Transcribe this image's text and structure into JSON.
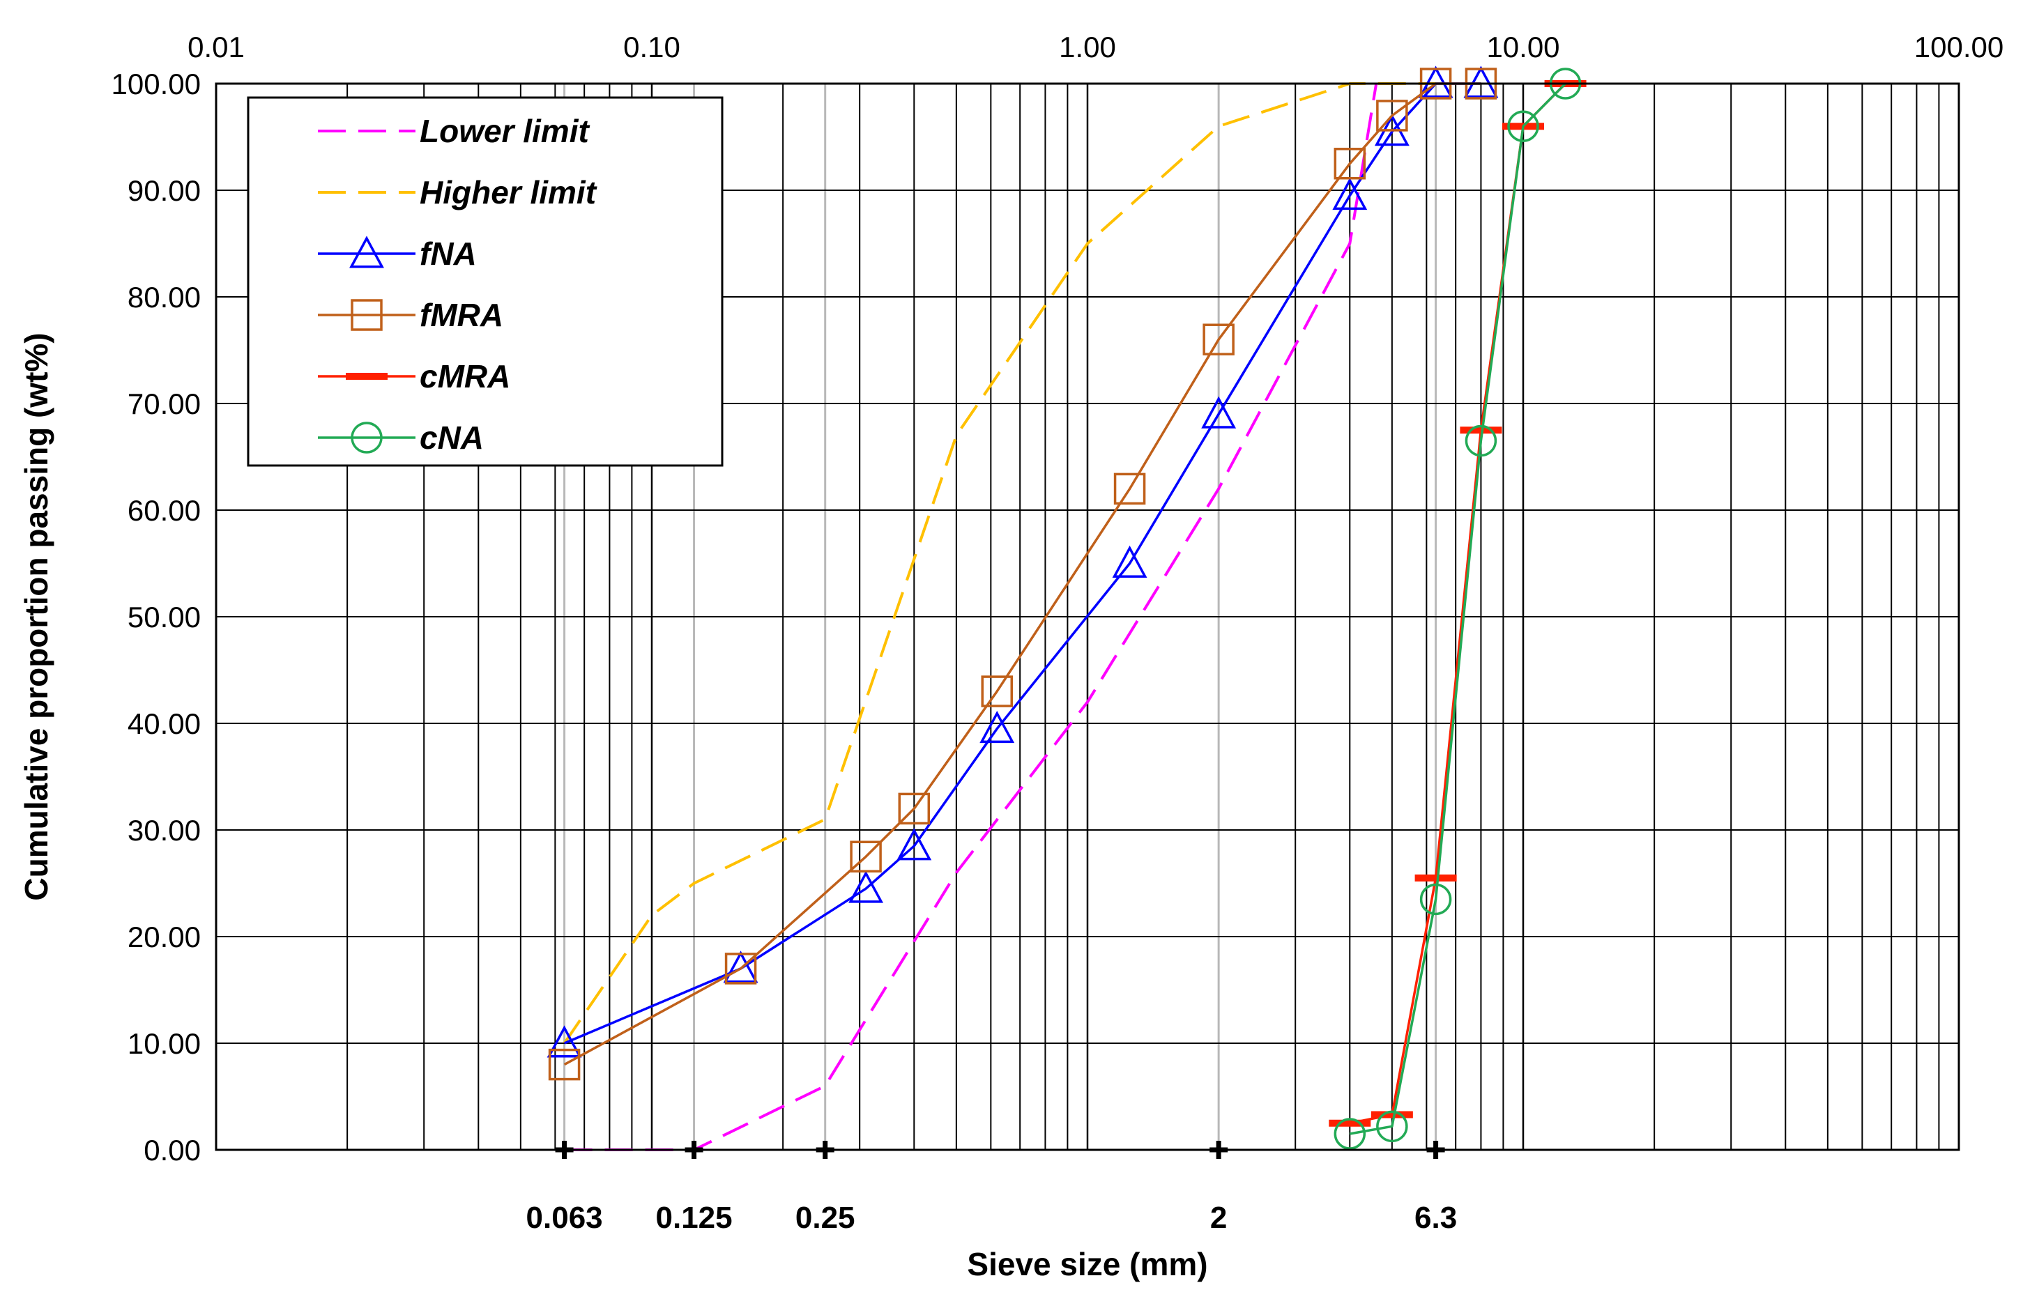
{
  "chart_data": {
    "type": "line",
    "xscale": "log",
    "xlim": [
      0.01,
      100
    ],
    "ylim": [
      0,
      100
    ],
    "xlabel": "Sieve size (mm)",
    "ylabel": "Cumulative proportion passing (wt%)",
    "x_tick_labels_top": [
      "0.01",
      "0.10",
      "1.00",
      "10.00",
      "100.00"
    ],
    "x_tick_values_top": [
      0.01,
      0.1,
      1,
      10,
      100
    ],
    "y_tick_labels": [
      "0.00",
      "10.00",
      "20.00",
      "30.00",
      "40.00",
      "50.00",
      "60.00",
      "70.00",
      "80.00",
      "90.00",
      "100.00"
    ],
    "sieve_labels": [
      "0.063",
      "0.125",
      "0.25",
      "2",
      "6.3"
    ],
    "sieve_values": [
      0.063,
      0.125,
      0.25,
      2,
      6.3
    ],
    "grid": true,
    "legend_position": "top-left",
    "series": [
      {
        "name": "Lower limit",
        "color": "#ff00ff",
        "dash": "dashed",
        "marker": "none",
        "x": [
          0.063,
          0.125,
          0.25,
          0.5,
          1,
          2,
          4,
          4.6
        ],
        "y": [
          0,
          0,
          6,
          26,
          42,
          62,
          85,
          100
        ]
      },
      {
        "name": "Higher limit",
        "color": "#ffc000",
        "dash": "dashed",
        "marker": "none",
        "x": [
          0.063,
          0.1,
          0.125,
          0.25,
          0.5,
          1,
          2,
          4,
          6.3
        ],
        "y": [
          10,
          22,
          25,
          31,
          67,
          85,
          96,
          100,
          100
        ]
      },
      {
        "name": "fNA",
        "color": "#0000ff",
        "dash": "solid",
        "marker": "triangle",
        "x": [
          0.063,
          0.16,
          0.31,
          0.4,
          0.62,
          1.25,
          2,
          4,
          5,
          6.3,
          8
        ],
        "y": [
          10,
          17,
          24.5,
          28.5,
          39.5,
          55,
          69,
          89.5,
          95.5,
          100,
          100
        ]
      },
      {
        "name": "fMRA",
        "color": "#c0601a",
        "dash": "solid",
        "marker": "square",
        "x": [
          0.063,
          0.16,
          0.31,
          0.4,
          0.62,
          1.25,
          2,
          4,
          5,
          6.3,
          8
        ],
        "y": [
          8,
          17,
          27.5,
          32,
          43,
          62,
          76,
          92.5,
          97,
          100,
          100
        ]
      },
      {
        "name": "cMRA",
        "color": "#ff2000",
        "dash": "solid",
        "marker": "dash",
        "x": [
          4,
          5,
          6.3,
          8,
          10,
          12.5
        ],
        "y": [
          2.5,
          3.3,
          25.5,
          67.5,
          96,
          100
        ]
      },
      {
        "name": "cNA",
        "color": "#22aa55",
        "dash": "solid",
        "marker": "circle",
        "x": [
          4,
          5,
          6.3,
          8,
          10,
          12.5
        ],
        "y": [
          1.5,
          2.2,
          23.5,
          66.5,
          96,
          100
        ]
      }
    ]
  }
}
